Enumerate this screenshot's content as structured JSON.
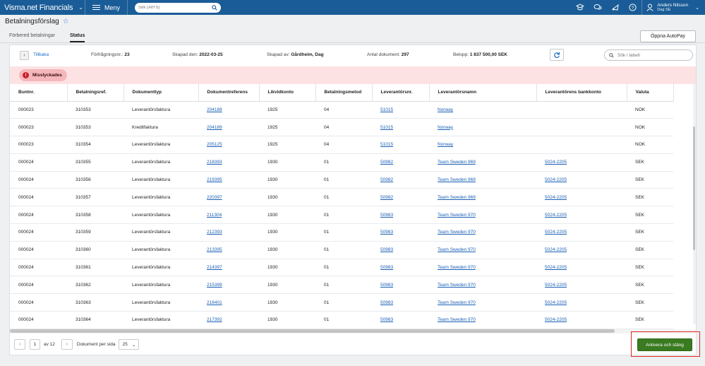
{
  "app": {
    "brand": "Visma.net Financials",
    "menu_label": "Meny",
    "search_placeholder": "Sök (Alt+S)"
  },
  "user": {
    "name": "Anders Nilsson",
    "company": "Dag SE"
  },
  "page": {
    "title": "Betalningsförslag"
  },
  "tabs": [
    {
      "label": "Förbered betalningar"
    },
    {
      "label": "Status"
    }
  ],
  "actions": {
    "autopay": "Öppna AutoPay",
    "archive": "Arkivera och stäng"
  },
  "info": {
    "back": "Tillbaka",
    "request_label": "Förfrågningsnr.:",
    "request_value": "23",
    "created_label": "Skapad den:",
    "created_value": "2022-03-25",
    "created_by_label": "Skapad av:",
    "created_by_value": "Gårdheim, Dag",
    "doc_count_label": "Antal dokument:",
    "doc_count_value": "297",
    "amount_label": "Belopp:",
    "amount_value": "1 837 500,00 SEK",
    "table_search_placeholder": "Sök i tabell"
  },
  "status": {
    "label": "Misslyckades"
  },
  "table": {
    "columns": [
      "Buntnr.",
      "Betalningsref.",
      "Dokumenttyp",
      "Dokumentreferens",
      "Likvidkonto",
      "Betalningsmetod",
      "Leverantörsnr.",
      "Leverantörsnamn",
      "Leverantörens bankkonto",
      "Valuta"
    ],
    "rows": [
      [
        "000023",
        "310353",
        "Leverantörsfaktura",
        "204188",
        "1925",
        "04",
        "51015",
        "Norway",
        "",
        "NOK"
      ],
      [
        "000023",
        "310353",
        "Kreditfaktura",
        "204189",
        "1925",
        "04",
        "51015",
        "Norway",
        "",
        "NOK"
      ],
      [
        "000023",
        "310354",
        "Leverantörsfaktura",
        "205125",
        "1925",
        "04",
        "51015",
        "Norway",
        "",
        "NOK"
      ],
      [
        "000024",
        "310355",
        "Leverantörsfaktura",
        "218393",
        "1930",
        "01",
        "50982",
        "Team Sweden 969",
        "5024-2205",
        "SEK"
      ],
      [
        "000024",
        "310356",
        "Leverantörsfaktura",
        "219395",
        "1930",
        "01",
        "50982",
        "Team Sweden 969",
        "5024-2205",
        "SEK"
      ],
      [
        "000024",
        "310357",
        "Leverantörsfaktura",
        "220397",
        "1930",
        "01",
        "50982",
        "Team Sweden 969",
        "5024-2205",
        "SEK"
      ],
      [
        "000024",
        "310358",
        "Leverantörsfaktura",
        "211304",
        "1930",
        "01",
        "50983",
        "Team Sweden 970",
        "5024-2205",
        "SEK"
      ],
      [
        "000024",
        "310359",
        "Leverantörsfaktura",
        "212393",
        "1930",
        "01",
        "50983",
        "Team Sweden 970",
        "5024-2205",
        "SEK"
      ],
      [
        "000024",
        "310360",
        "Leverantörsfaktura",
        "213395",
        "1930",
        "01",
        "50983",
        "Team Sweden 970",
        "5024-2205",
        "SEK"
      ],
      [
        "000024",
        "310361",
        "Leverantörsfaktura",
        "214397",
        "1930",
        "01",
        "50983",
        "Team Sweden 970",
        "5024-2205",
        "SEK"
      ],
      [
        "000024",
        "310362",
        "Leverantörsfaktura",
        "215399",
        "1930",
        "01",
        "50983",
        "Team Sweden 970",
        "5024-2205",
        "SEK"
      ],
      [
        "000024",
        "310363",
        "Leverantörsfaktura",
        "216401",
        "1930",
        "01",
        "50983",
        "Team Sweden 970",
        "5024-2205",
        "SEK"
      ],
      [
        "000024",
        "310364",
        "Leverantörsfaktura",
        "217392",
        "1930",
        "01",
        "50983",
        "Team Sweden 970",
        "5024-2205",
        "SEK"
      ]
    ]
  },
  "pager": {
    "page": "1",
    "of_label": "av 12",
    "per_page_label": "Dokument per sida",
    "per_page_value": "25"
  },
  "colors": {
    "topbar": "#1a5c97",
    "link": "#1a5fb4",
    "alert_bg": "#fde2e3",
    "archive_button": "#3a7a20",
    "highlight": "#e0281f"
  }
}
